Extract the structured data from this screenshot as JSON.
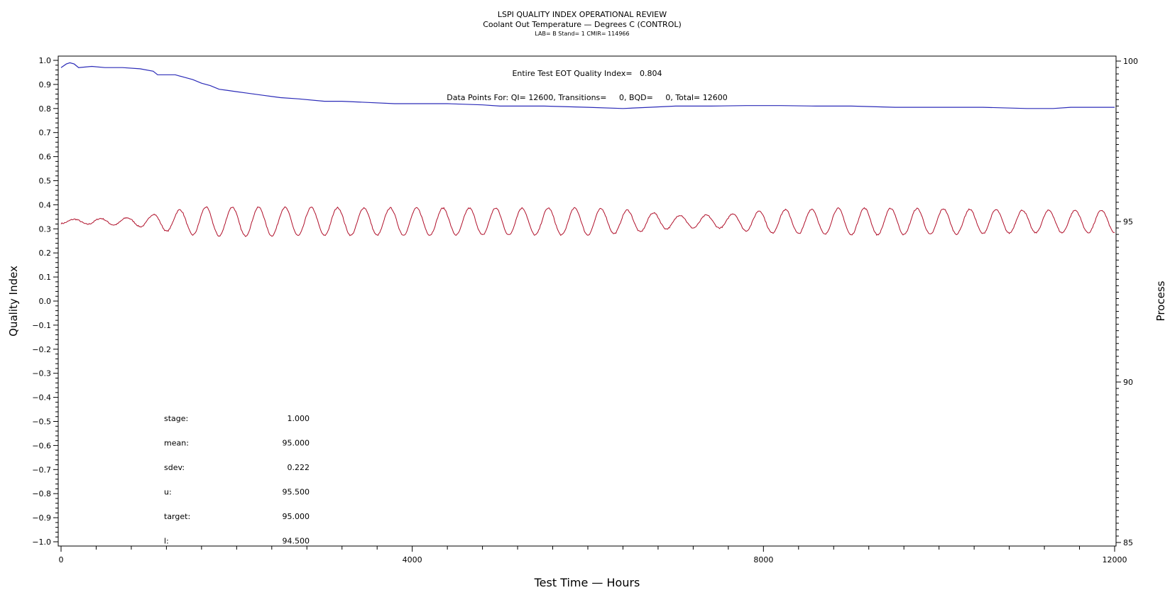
{
  "chart_data": {
    "type": "line",
    "title": "LSPI QUALITY INDEX OPERATIONAL REVIEW",
    "subtitle": "Coolant Out Temperature — Degrees C (CONTROL)",
    "subtitle2": "LAB= B Stand= 1 CMIR= 114966",
    "xlabel": "Test Time — Hours",
    "ylabel_left": "Quality Index",
    "ylabel_right": "Process",
    "xlim": [
      0,
      12000
    ],
    "ylim_left": [
      -1.0,
      1.0
    ],
    "ylim_right": [
      85,
      100
    ],
    "x_ticks": [
      "0",
      "4000",
      "8000",
      "12000"
    ],
    "y_left_ticks": [
      "1.0",
      "0.9",
      "0.8",
      "0.7",
      "0.6",
      "0.5",
      "0.4",
      "0.3",
      "0.2",
      "0.1",
      "0.0",
      "−0.1",
      "−0.2",
      "−0.3",
      "−0.4",
      "−0.5",
      "−0.6",
      "−0.7",
      "−0.8",
      "−0.9",
      "−1.0"
    ],
    "y_right_ticks": [
      "100",
      "95",
      "90",
      "85"
    ],
    "annotations": {
      "eot": "Entire Test EOT Quality Index=   0.804",
      "points": "Data Points For: QI= 12600, Transitions=     0, BQD=     0, Total= 12600"
    },
    "stats": [
      {
        "label": "stage:",
        "value": "1.000"
      },
      {
        "label": "mean:",
        "value": "95.000"
      },
      {
        "label": "sdev:",
        "value": "0.222"
      },
      {
        "label": "u:",
        "value": "95.500"
      },
      {
        "label": "target:",
        "value": "95.000"
      },
      {
        "label": "l:",
        "value": "94.500"
      }
    ],
    "series": [
      {
        "axis": "left",
        "color": "#2b2bb8",
        "x": [
          0,
          60,
          100,
          150,
          200,
          350,
          500,
          700,
          900,
          1050,
          1100,
          1300,
          1400,
          1500,
          1600,
          1700,
          1800,
          1900,
          2000,
          2100,
          2300,
          2500,
          2700,
          3000,
          3200,
          3500,
          3800,
          4000,
          4400,
          4800,
          5000,
          5500,
          6000,
          6400,
          6700,
          7000,
          7400,
          7800,
          8200,
          8600,
          9000,
          9500,
          10000,
          10500,
          11000,
          11300,
          11500,
          12000
        ],
        "y": [
          0.97,
          0.985,
          0.99,
          0.985,
          0.97,
          0.975,
          0.97,
          0.97,
          0.965,
          0.955,
          0.94,
          0.94,
          0.93,
          0.92,
          0.905,
          0.895,
          0.88,
          0.875,
          0.87,
          0.865,
          0.855,
          0.845,
          0.84,
          0.83,
          0.83,
          0.825,
          0.82,
          0.82,
          0.82,
          0.815,
          0.81,
          0.81,
          0.805,
          0.8,
          0.805,
          0.81,
          0.81,
          0.812,
          0.812,
          0.81,
          0.81,
          0.805,
          0.805,
          0.805,
          0.8,
          0.8,
          0.805,
          0.805
        ]
      },
      {
        "axis": "right",
        "color": "#b0102a",
        "x_start": 0,
        "x_end": 12000,
        "x_step": 10,
        "mean": 95.0,
        "period_hours": 300,
        "phase": -1.5708,
        "amplitude_envelope": {
          "x": [
            0,
            500,
            800,
            1000,
            1300,
            1600,
            2000,
            4000,
            5000,
            6000,
            6500,
            7000,
            7500,
            8000,
            9000,
            10000,
            11000,
            11600,
            12000
          ],
          "amp": [
            0.06,
            0.1,
            0.12,
            0.2,
            0.35,
            0.45,
            0.45,
            0.42,
            0.42,
            0.42,
            0.35,
            0.2,
            0.2,
            0.35,
            0.42,
            0.4,
            0.35,
            0.35,
            0.35
          ]
        },
        "noise": 0.02
      }
    ]
  }
}
